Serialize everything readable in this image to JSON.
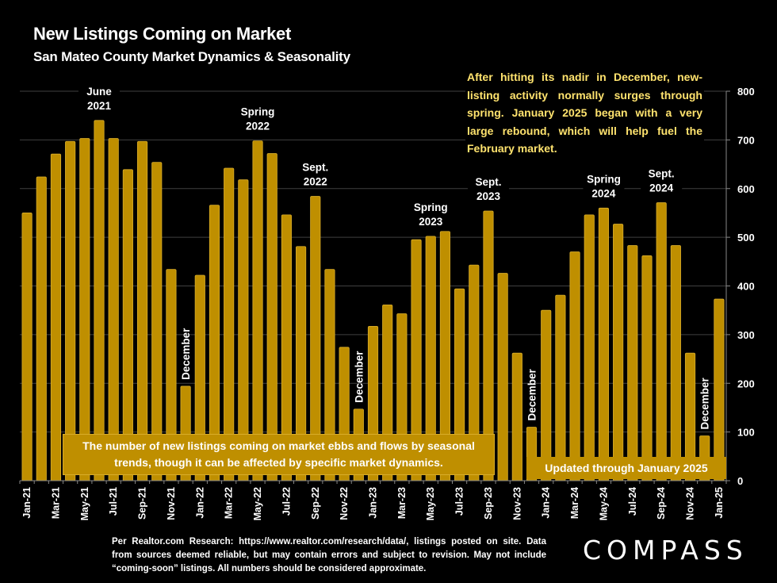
{
  "header": {
    "title": "New Listings Coming on Market",
    "subtitle": "San Mateo County Market Dynamics & Seasonality"
  },
  "commentary": "After hitting its nadir in December, new-listing activity normally surges through spring. January 2025 began with a very large rebound, which will help fuel the February market.",
  "callouts": {
    "seasonal_box": "The number of new listings coming on market ebbs and flows by seasonal trends, though it can be affected by specific market dynamics.",
    "updated_box": "Updated through January 2025"
  },
  "footer": {
    "source": "Per Realtor.com Research:  https://www.realtor.com/research/data/, listings posted on site. Data from sources deemed reliable, but may contain errors and subject to revision. May not include “coming-soon” listings. All numbers should be considered approximate.",
    "logo": "COMPASS"
  },
  "colors": {
    "bar": "#BF8F00",
    "bar_edge": "#D9AD2A",
    "commentary_text": "#FFE36E",
    "background": "#000000",
    "gridline": "#404040"
  },
  "chart_data": {
    "type": "bar",
    "title": "New Listings Coming on Market",
    "subtitle": "San Mateo County Market Dynamics & Seasonality",
    "xlabel": "",
    "ylabel": "",
    "ylim": [
      0,
      800
    ],
    "y_ticks": [
      0,
      100,
      200,
      300,
      400,
      500,
      600,
      700,
      800
    ],
    "y_axis_side": "right",
    "grid": true,
    "categories": [
      "Jan-21",
      "Feb-21",
      "Mar-21",
      "Apr-21",
      "May-21",
      "Jun-21",
      "Jul-21",
      "Aug-21",
      "Sep-21",
      "Oct-21",
      "Nov-21",
      "Dec-21",
      "Jan-22",
      "Feb-22",
      "Mar-22",
      "Apr-22",
      "May-22",
      "Jun-22",
      "Jul-22",
      "Aug-22",
      "Sep-22",
      "Oct-22",
      "Nov-22",
      "Dec-22",
      "Jan-23",
      "Feb-23",
      "Mar-23",
      "Apr-23",
      "May-23",
      "Jun-23",
      "Jul-23",
      "Aug-23",
      "Sep-23",
      "Oct-23",
      "Nov-23",
      "Dec-23",
      "Jan-24",
      "Feb-24",
      "Mar-24",
      "Apr-24",
      "May-24",
      "Jun-24",
      "Jul-24",
      "Aug-24",
      "Sep-24",
      "Oct-24",
      "Nov-24",
      "Dec-24",
      "Jan-25"
    ],
    "x_tick_labels_shown": [
      "Jan-21",
      "Mar-21",
      "May-21",
      "Jul-21",
      "Sep-21",
      "Nov-21",
      "Jan-22",
      "Mar-22",
      "May-22",
      "Jul-22",
      "Sep-22",
      "Nov-22",
      "Jan-23",
      "Mar-23",
      "May-23",
      "Jul-23",
      "Sep-23",
      "Nov-23",
      "Jan-24",
      "Mar-24",
      "May-24",
      "Jul-24",
      "Sep-24",
      "Nov-24",
      "Jan-25"
    ],
    "values": [
      550,
      624,
      671,
      697,
      703,
      740,
      703,
      639,
      697,
      654,
      434,
      194,
      422,
      566,
      642,
      618,
      698,
      672,
      546,
      481,
      584,
      434,
      274,
      147,
      317,
      361,
      343,
      495,
      502,
      512,
      394,
      443,
      554,
      426,
      262,
      110,
      350,
      381,
      470,
      546,
      560,
      527,
      483,
      462,
      571,
      483,
      262,
      92,
      373
    ],
    "annotations": [
      {
        "text": [
          "June",
          "2021"
        ],
        "at": "Jun-21",
        "orientation": "horizontal"
      },
      {
        "text": [
          "December"
        ],
        "at": "Dec-21",
        "orientation": "vertical"
      },
      {
        "text": [
          "Spring",
          "2022"
        ],
        "at": "May-22",
        "orientation": "horizontal"
      },
      {
        "text": [
          "Sept.",
          "2022"
        ],
        "at": "Sep-22",
        "orientation": "horizontal"
      },
      {
        "text": [
          "December"
        ],
        "at": "Dec-22",
        "orientation": "vertical"
      },
      {
        "text": [
          "Spring",
          "2023"
        ],
        "at": "May-23",
        "orientation": "horizontal"
      },
      {
        "text": [
          "Sept.",
          "2023"
        ],
        "at": "Sep-23",
        "orientation": "horizontal"
      },
      {
        "text": [
          "December"
        ],
        "at": "Dec-23",
        "orientation": "vertical"
      },
      {
        "text": [
          "Spring",
          "2024"
        ],
        "at": "May-24",
        "orientation": "horizontal"
      },
      {
        "text": [
          "Sept.",
          "2024"
        ],
        "at": "Sep-24",
        "orientation": "horizontal"
      },
      {
        "text": [
          "December"
        ],
        "at": "Dec-24",
        "orientation": "vertical"
      }
    ]
  }
}
